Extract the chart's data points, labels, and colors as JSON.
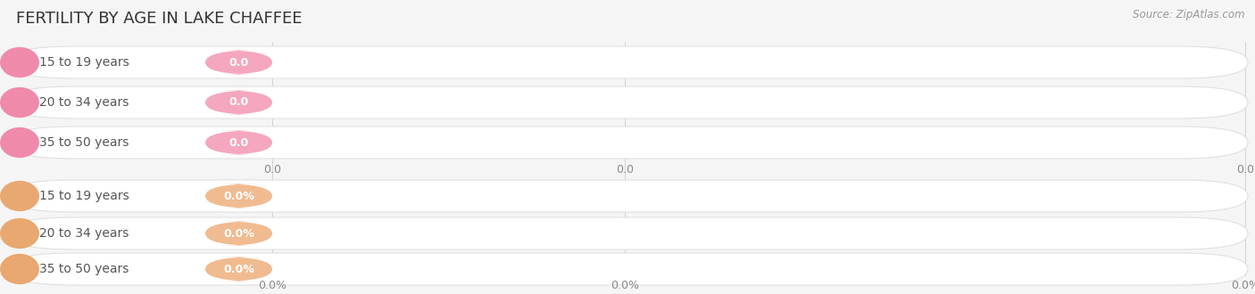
{
  "title": "FERTILITY BY AGE IN LAKE CHAFFEE",
  "source": "Source: ZipAtlas.com",
  "top_group": {
    "labels": [
      "15 to 19 years",
      "20 to 34 years",
      "35 to 50 years"
    ],
    "values": [
      0.0,
      0.0,
      0.0
    ],
    "bar_bg": "#ffffff",
    "bar_border": "#e0e0e0",
    "cap_color": "#f08aaa",
    "badge_color": "#f4a7be",
    "value_suffix": "",
    "axis_label": "0.0"
  },
  "bottom_group": {
    "labels": [
      "15 to 19 years",
      "20 to 34 years",
      "35 to 50 years"
    ],
    "values": [
      0.0,
      0.0,
      0.0
    ],
    "bar_bg": "#ffffff",
    "bar_border": "#e0e0e0",
    "cap_color": "#e8a870",
    "badge_color": "#f0bb90",
    "value_suffix": "%",
    "axis_label": "0.0%"
  },
  "fig_bg": "#f5f5f5",
  "title_color": "#333333",
  "source_color": "#999999",
  "label_color": "#555555",
  "tick_color": "#888888",
  "grid_color": "#cccccc",
  "title_fontsize": 13,
  "label_fontsize": 10,
  "badge_fontsize": 9,
  "tick_fontsize": 9,
  "source_fontsize": 8.5,
  "fig_width": 14.06,
  "fig_height": 3.3
}
